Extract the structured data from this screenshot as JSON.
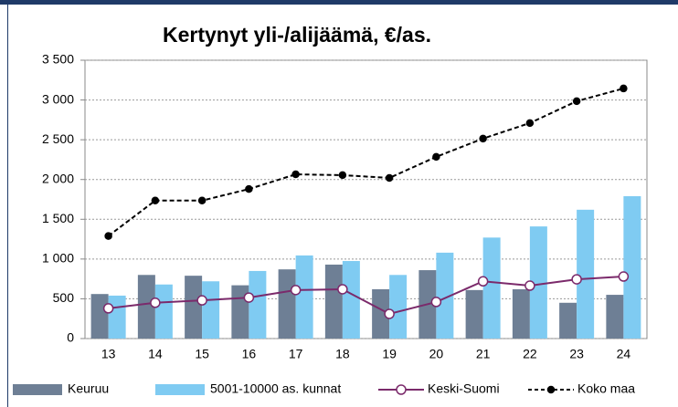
{
  "chart_data": {
    "type": "bar",
    "title": "Kertynyt yli-/alijäämä, €/as.",
    "categories": [
      "13",
      "14",
      "15",
      "16",
      "17",
      "18",
      "19",
      "20",
      "21",
      "22",
      "23",
      "24"
    ],
    "series": [
      {
        "name": "Keuruu",
        "type": "bar",
        "color": "#6e7f95",
        "values": [
          560,
          800,
          790,
          670,
          870,
          930,
          620,
          860,
          610,
          620,
          450,
          550
        ]
      },
      {
        "name": "5001-10000 as. kunnat",
        "type": "bar",
        "color": "#7fcbf2",
        "values": [
          540,
          680,
          720,
          850,
          1045,
          975,
          800,
          1080,
          1270,
          1410,
          1620,
          1790
        ]
      },
      {
        "name": "Keski-Suomi",
        "type": "line",
        "color": "#7b2a6b",
        "marker": "open",
        "dashed": false,
        "values": [
          380,
          450,
          480,
          515,
          610,
          620,
          310,
          460,
          720,
          665,
          745,
          780
        ]
      },
      {
        "name": "Koko maa",
        "type": "line",
        "color": "#000000",
        "marker": "filled",
        "dashed": true,
        "values": [
          1290,
          1735,
          1735,
          1880,
          2065,
          2055,
          2020,
          2285,
          2515,
          2710,
          2985,
          3145
        ]
      }
    ],
    "ylim": [
      0,
      3500
    ],
    "yticks": [
      0,
      500,
      {
        "value": 1000,
        "label": "1 000"
      },
      {
        "value": 1500,
        "label": "1 500"
      },
      {
        "value": 2000,
        "label": "2 000"
      },
      {
        "value": 2500,
        "label": "2 500"
      },
      {
        "value": 3000,
        "label": "3 000"
      },
      {
        "value": 3500,
        "label": "3 500"
      }
    ],
    "grid": true,
    "legend": "bottom"
  }
}
